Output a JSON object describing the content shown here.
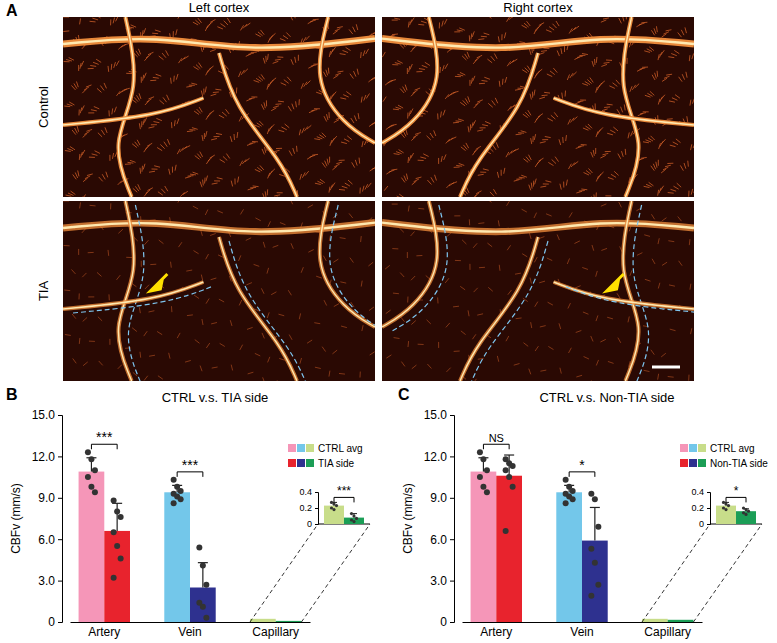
{
  "panel_a": {
    "label": "A",
    "columns": [
      "Left cortex",
      "Right cortex"
    ],
    "rows": [
      "Control",
      "TIA"
    ]
  },
  "chart_data": [
    {
      "type": "bar",
      "panel_label": "B",
      "title": "CTRL v.s. TIA side",
      "y_label": "CBFv (mm/s)",
      "categories": [
        "Artery",
        "Vein",
        "Capillary"
      ],
      "series": [
        {
          "name": "CTRL avg",
          "colors": [
            "#f596b8",
            "#73c7ea",
            "#c8dd8a"
          ],
          "values": [
            10.9,
            9.4,
            0.23
          ],
          "errors": [
            1.0,
            0.5,
            0.04
          ],
          "points": [
            [
              12.3,
              11.8,
              11.0,
              10.5,
              9.8,
              9.4
            ],
            [
              10.3,
              9.8,
              9.5,
              9.3,
              9.1,
              8.9,
              8.6
            ],
            [
              0.27,
              0.25,
              0.23,
              0.2,
              0.18
            ]
          ]
        },
        {
          "name": "TIA side",
          "colors": [
            "#e8232d",
            "#2e318f",
            "#1b9e56"
          ],
          "values": [
            6.6,
            2.5,
            0.08
          ],
          "errors": [
            2.0,
            1.8,
            0.05
          ],
          "points": [
            [
              8.8,
              8.0,
              7.6,
              6.5,
              5.5,
              4.6,
              3.2
            ],
            [
              5.4,
              4.1,
              2.7,
              1.4,
              1.1,
              0.3
            ],
            [
              0.13,
              0.1,
              0.07,
              0.05,
              0.03
            ]
          ]
        }
      ],
      "ylim": [
        0,
        15
      ],
      "yticks": [
        0,
        {
          "value": 3,
          "label": "3.0"
        },
        {
          "value": 6,
          "label": "6.0"
        },
        {
          "value": 9,
          "label": "9.0"
        },
        {
          "value": 12,
          "label": "12.0"
        },
        {
          "value": 15,
          "label": "15.0"
        }
      ],
      "annotations": [
        "***",
        "***",
        "***"
      ],
      "inset": {
        "ylim": [
          0,
          0.4
        ],
        "yticks": [
          0,
          0.2,
          0.4
        ]
      }
    },
    {
      "type": "bar",
      "panel_label": "C",
      "title": "CTRL v.s. Non-TIA side",
      "y_label": "CBFv (mm/s)",
      "categories": [
        "Artery",
        "Vein",
        "Capillary"
      ],
      "series": [
        {
          "name": "CTRL avg",
          "colors": [
            "#f596b8",
            "#73c7ea",
            "#c8dd8a"
          ],
          "values": [
            10.9,
            9.4,
            0.23
          ],
          "errors": [
            1.0,
            0.5,
            0.04
          ],
          "points": [
            [
              12.3,
              11.8,
              11.0,
              10.5,
              9.8,
              9.4
            ],
            [
              10.3,
              9.8,
              9.5,
              9.3,
              9.1,
              8.9,
              8.6
            ],
            [
              0.27,
              0.25,
              0.23,
              0.2,
              0.18
            ]
          ]
        },
        {
          "name": "Non-TIA side",
          "colors": [
            "#e8232d",
            "#2e318f",
            "#1b9e56"
          ],
          "values": [
            10.6,
            5.9,
            0.16
          ],
          "errors": [
            1.5,
            2.4,
            0.03
          ],
          "points": [
            [
              11.8,
              11.5,
              11.3,
              11.0,
              10.5,
              9.8,
              6.6
            ],
            [
              9.3,
              8.9,
              6.9,
              5.3,
              4.3,
              2.7,
              1.9
            ],
            [
              0.2,
              0.18,
              0.16,
              0.14,
              0.12
            ]
          ]
        }
      ],
      "ylim": [
        0,
        15
      ],
      "yticks": [
        0,
        {
          "value": 3,
          "label": "3.0"
        },
        {
          "value": 6,
          "label": "6.0"
        },
        {
          "value": 9,
          "label": "9.0"
        },
        {
          "value": 12,
          "label": "12.0"
        },
        {
          "value": 15,
          "label": "15.0"
        }
      ],
      "annotations": [
        "NS",
        "*",
        "*"
      ],
      "inset": {
        "ylim": [
          0,
          0.4
        ],
        "yticks": [
          0,
          0.2,
          0.4
        ]
      }
    }
  ]
}
